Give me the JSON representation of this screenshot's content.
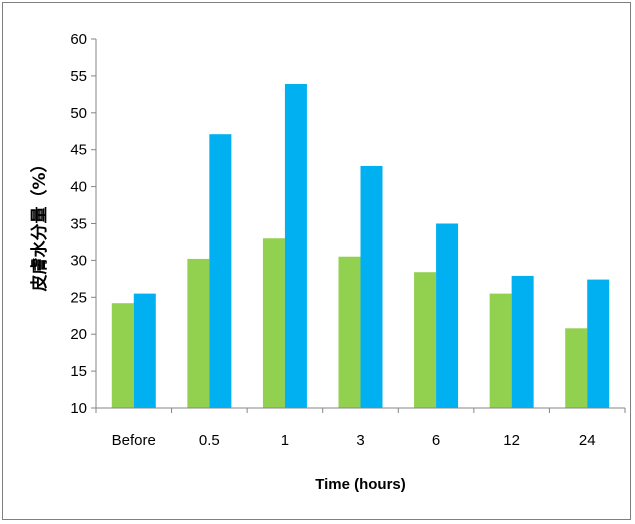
{
  "chart_data": {
    "type": "bar",
    "title": "",
    "xlabel": "Time (hours)",
    "ylabel": "皮膚水分量（%）",
    "categories": [
      "Before",
      "0.5",
      "1",
      "3",
      "6",
      "12",
      "24"
    ],
    "series": [
      {
        "values": [
          24.2,
          30.2,
          33.0,
          30.5,
          28.4,
          25.5,
          20.8
        ],
        "color": "#92d050"
      },
      {
        "values": [
          25.5,
          47.1,
          53.9,
          42.8,
          35.0,
          27.9,
          27.4
        ],
        "color": "#00b0f0"
      }
    ],
    "ylim": [
      10,
      60
    ],
    "yticks": [
      "10",
      "15",
      "20",
      "25",
      "30",
      "35",
      "40",
      "45",
      "50",
      "55",
      "60"
    ],
    "grid": false,
    "legend": "none"
  }
}
